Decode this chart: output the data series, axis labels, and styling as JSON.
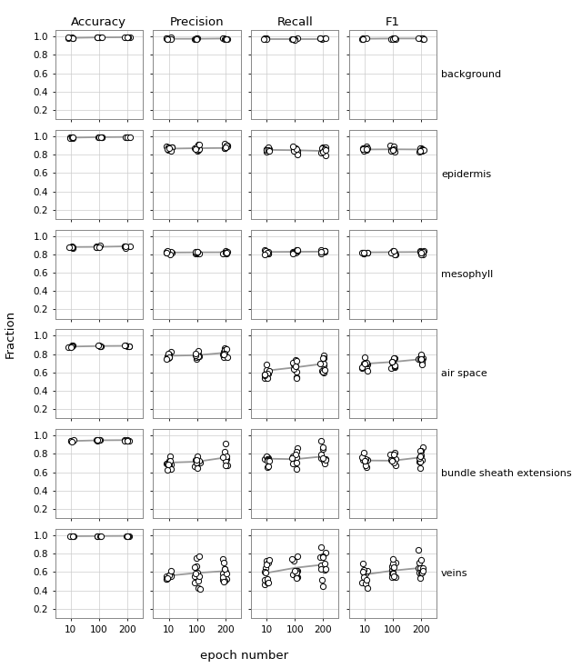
{
  "rows": [
    "background",
    "epidermis",
    "mesophyll",
    "air space",
    "bundle sheath extensions",
    "veins"
  ],
  "cols": [
    "Accuracy",
    "Precision",
    "Recall",
    "F1"
  ],
  "xlabel": "epoch number",
  "ylabel": "Fraction",
  "x_positions": [
    1,
    2,
    3
  ],
  "x_tick_labels": [
    "10",
    "100",
    "200"
  ],
  "ylim": [
    0.1,
    1.07
  ],
  "yticks": [
    0.2,
    0.4,
    0.6,
    0.8,
    1.0
  ],
  "background_color": "#ffffff",
  "grid_color": "#cccccc",
  "line_color": "#999999",
  "data": {
    "background": {
      "Accuracy": {
        "means": [
          0.985,
          0.99,
          0.992
        ],
        "spread": 0.003,
        "n": 5
      },
      "Precision": {
        "means": [
          0.975,
          0.975,
          0.978
        ],
        "spread": 0.006,
        "n": 6
      },
      "Recall": {
        "means": [
          0.975,
          0.975,
          0.975
        ],
        "spread": 0.004,
        "n": 5
      },
      "F1": {
        "means": [
          0.975,
          0.978,
          0.978
        ],
        "spread": 0.004,
        "n": 5
      }
    },
    "epidermis": {
      "Accuracy": {
        "means": [
          0.985,
          0.99,
          0.992
        ],
        "spread": 0.004,
        "n": 5
      },
      "Precision": {
        "means": [
          0.865,
          0.87,
          0.872
        ],
        "spread": 0.02,
        "n": 8
      },
      "Recall": {
        "means": [
          0.852,
          0.848,
          0.84
        ],
        "spread": 0.022,
        "n": 8
      },
      "F1": {
        "means": [
          0.856,
          0.858,
          0.856
        ],
        "spread": 0.02,
        "n": 8
      }
    },
    "mesophyll": {
      "Accuracy": {
        "means": [
          0.88,
          0.882,
          0.888
        ],
        "spread": 0.007,
        "n": 5
      },
      "Precision": {
        "means": [
          0.82,
          0.822,
          0.823
        ],
        "spread": 0.014,
        "n": 8
      },
      "Recall": {
        "means": [
          0.826,
          0.828,
          0.83
        ],
        "spread": 0.016,
        "n": 8
      },
      "F1": {
        "means": [
          0.822,
          0.824,
          0.826
        ],
        "spread": 0.014,
        "n": 7
      }
    },
    "air space": {
      "Accuracy": {
        "means": [
          0.882,
          0.888,
          0.89
        ],
        "spread": 0.004,
        "n": 5
      },
      "Precision": {
        "means": [
          0.782,
          0.788,
          0.815
        ],
        "spread": 0.03,
        "n": 10
      },
      "Recall": {
        "means": [
          0.62,
          0.655,
          0.695
        ],
        "spread": 0.055,
        "n": 10
      },
      "F1": {
        "means": [
          0.695,
          0.715,
          0.745
        ],
        "spread": 0.042,
        "n": 10
      }
    },
    "bundle sheath extensions": {
      "Accuracy": {
        "means": [
          0.94,
          0.948,
          0.95
        ],
        "spread": 0.004,
        "n": 5
      },
      "Precision": {
        "means": [
          0.705,
          0.715,
          0.76
        ],
        "spread": 0.058,
        "n": 10
      },
      "Recall": {
        "means": [
          0.748,
          0.742,
          0.772
        ],
        "spread": 0.058,
        "n": 10
      },
      "F1": {
        "means": [
          0.728,
          0.726,
          0.762
        ],
        "spread": 0.055,
        "n": 10
      }
    },
    "veins": {
      "Accuracy": {
        "means": [
          0.99,
          0.992,
          0.993
        ],
        "spread": 0.002,
        "n": 4
      },
      "Precision": {
        "means": [
          0.56,
          0.59,
          0.61
        ],
        "spread": 0.075,
        "n": 12
      },
      "Recall": {
        "means": [
          0.59,
          0.645,
          0.68
        ],
        "spread": 0.11,
        "n": 12
      },
      "F1": {
        "means": [
          0.572,
          0.615,
          0.645
        ],
        "spread": 0.078,
        "n": 12
      }
    }
  }
}
